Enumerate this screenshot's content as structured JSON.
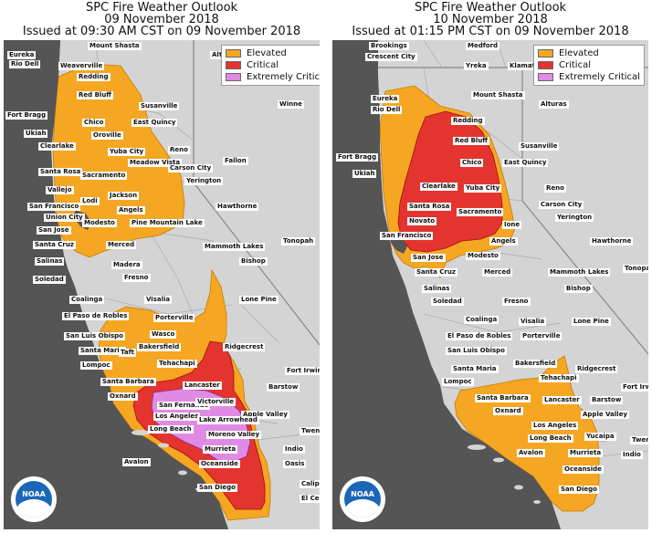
{
  "map_left": {
    "title_line1": "SPC Fire Weather Outlook",
    "title_line2": "09 November 2018",
    "title_line3": "Issued at 09:30 AM CST on 09 November 2018",
    "legend": [
      {
        "label": "Elevated",
        "color": "#f5a623"
      },
      {
        "label": "Critical",
        "color": "#e3342f"
      },
      {
        "label": "Extremely Critical",
        "color": "#e08be3"
      }
    ],
    "cities": [
      "Mount Shasta",
      "Eureka",
      "Alturas",
      "Rio Dell",
      "Weaverville",
      "Redding",
      "Red Bluff",
      "Susanville",
      "Winne",
      "Fort Bragg",
      "Chico",
      "East Quincy",
      "Ukiah",
      "Oroville",
      "Yuba City",
      "Reno",
      "Clearlake",
      "Meadow Vista",
      "Fallon",
      "Carson City",
      "Santa Rosa",
      "Sacramento",
      "Yerington",
      "Vallejo",
      "Lodi",
      "Jackson",
      "San Francisco",
      "Angels",
      "Hawthorne",
      "Union City",
      "Pine Mountain Lake",
      "San Jose",
      "Modesto",
      "Santa Cruz",
      "Mammoth Lakes",
      "Tonopah",
      "Merced",
      "Salinas",
      "Madera",
      "Bishop",
      "Soledad",
      "Fresno",
      "Lone Pine",
      "Coalinga",
      "Visalia",
      "El Paso de Robles",
      "Porterville",
      "San Luis Obispo",
      "Wasco",
      "Santa Maria",
      "Taft",
      "Bakersfield",
      "Ridgecrest",
      "Lompoc",
      "Tehachapi",
      "Fort Irwin",
      "Santa Barbara",
      "Lancaster",
      "Barstow",
      "Oxnard",
      "San Fernando",
      "Victorville",
      "Los Angeles",
      "Apple Valley",
      "Long Beach",
      "Lake Arrowhead",
      "Moreno Valley",
      "Twentynine",
      "Avalon",
      "Murrieta",
      "Indio",
      "Oceanside",
      "Oasis",
      "Calipat",
      "San Diego",
      "El Centro"
    ]
  },
  "map_right": {
    "title_line1": "SPC Fire Weather Outlook",
    "title_line2": "10 November 2018",
    "title_line3": "Issued at 01:15 PM CST on 09 November 2018",
    "legend": [
      {
        "label": "Elevated",
        "color": "#f5a623"
      },
      {
        "label": "Critical",
        "color": "#e3342f"
      },
      {
        "label": "Extremely Critical",
        "color": "#e08be3"
      }
    ],
    "cities": [
      "Brookings",
      "Medford",
      "Crescent City",
      "Yreka",
      "Klamath F",
      "Mount Shasta",
      "Eureka",
      "Alturas",
      "Rio Dell",
      "Redding",
      "Red Bluff",
      "Susanville",
      "Fort Bragg",
      "Chico",
      "East Quincy",
      "Ukiah",
      "Reno",
      "Clearlake",
      "Yuba City",
      "Carson City",
      "Santa Rosa",
      "Sacramento",
      "Yerington",
      "Novato",
      "Ione",
      "San Francisco",
      "Angels",
      "Hawthorne",
      "San Jose",
      "Modesto",
      "Santa Cruz",
      "Merced",
      "Mammoth Lakes",
      "Tonopah",
      "Salinas",
      "Bishop",
      "Soledad",
      "Fresno",
      "Coalinga",
      "Lone Pine",
      "Visalia",
      "El Paso de Robles",
      "Porterville",
      "San Luis Obispo",
      "Santa Maria",
      "Bakersfield",
      "Ridgecrest",
      "Lompoc",
      "Tehachapi",
      "Fort Irwin",
      "Santa Barbara",
      "Lancaster",
      "Barstow",
      "Oxnard",
      "Apple Valley",
      "Los Angeles",
      "Yucaipa",
      "Long Beach",
      "Twenty",
      "Avalon",
      "Murrieta",
      "Indio",
      "Oceanside",
      "San Diego"
    ]
  },
  "logo": {
    "text": "NOAA"
  }
}
